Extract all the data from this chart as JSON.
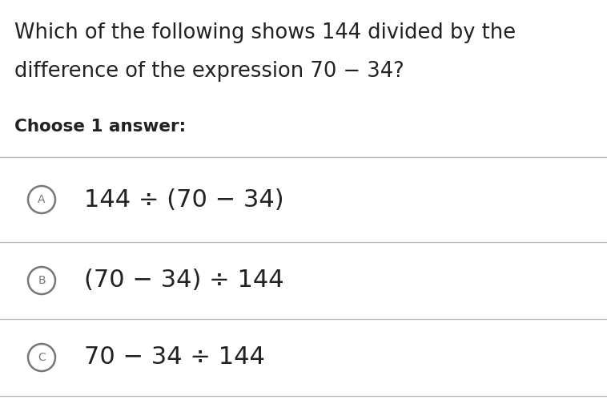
{
  "title_line1": "Which of the following shows 144 divided by the",
  "title_line2": "difference of the expression 70 − 34?",
  "choose_label": "Choose 1 answer:",
  "options": [
    {
      "label": "A",
      "text": "144 ÷ (70 − 34)"
    },
    {
      "label": "B",
      "text": "(70 − 34) ÷ 144"
    },
    {
      "label": "C",
      "text": "70 − 34 ÷ 144"
    }
  ],
  "bg_color": "#ffffff",
  "text_color": "#222222",
  "circle_color": "#777777",
  "line_color": "#bbbbbb",
  "title_fontsize": 18.5,
  "choose_fontsize": 15.5,
  "option_fontsize": 22,
  "label_fontsize": 10
}
